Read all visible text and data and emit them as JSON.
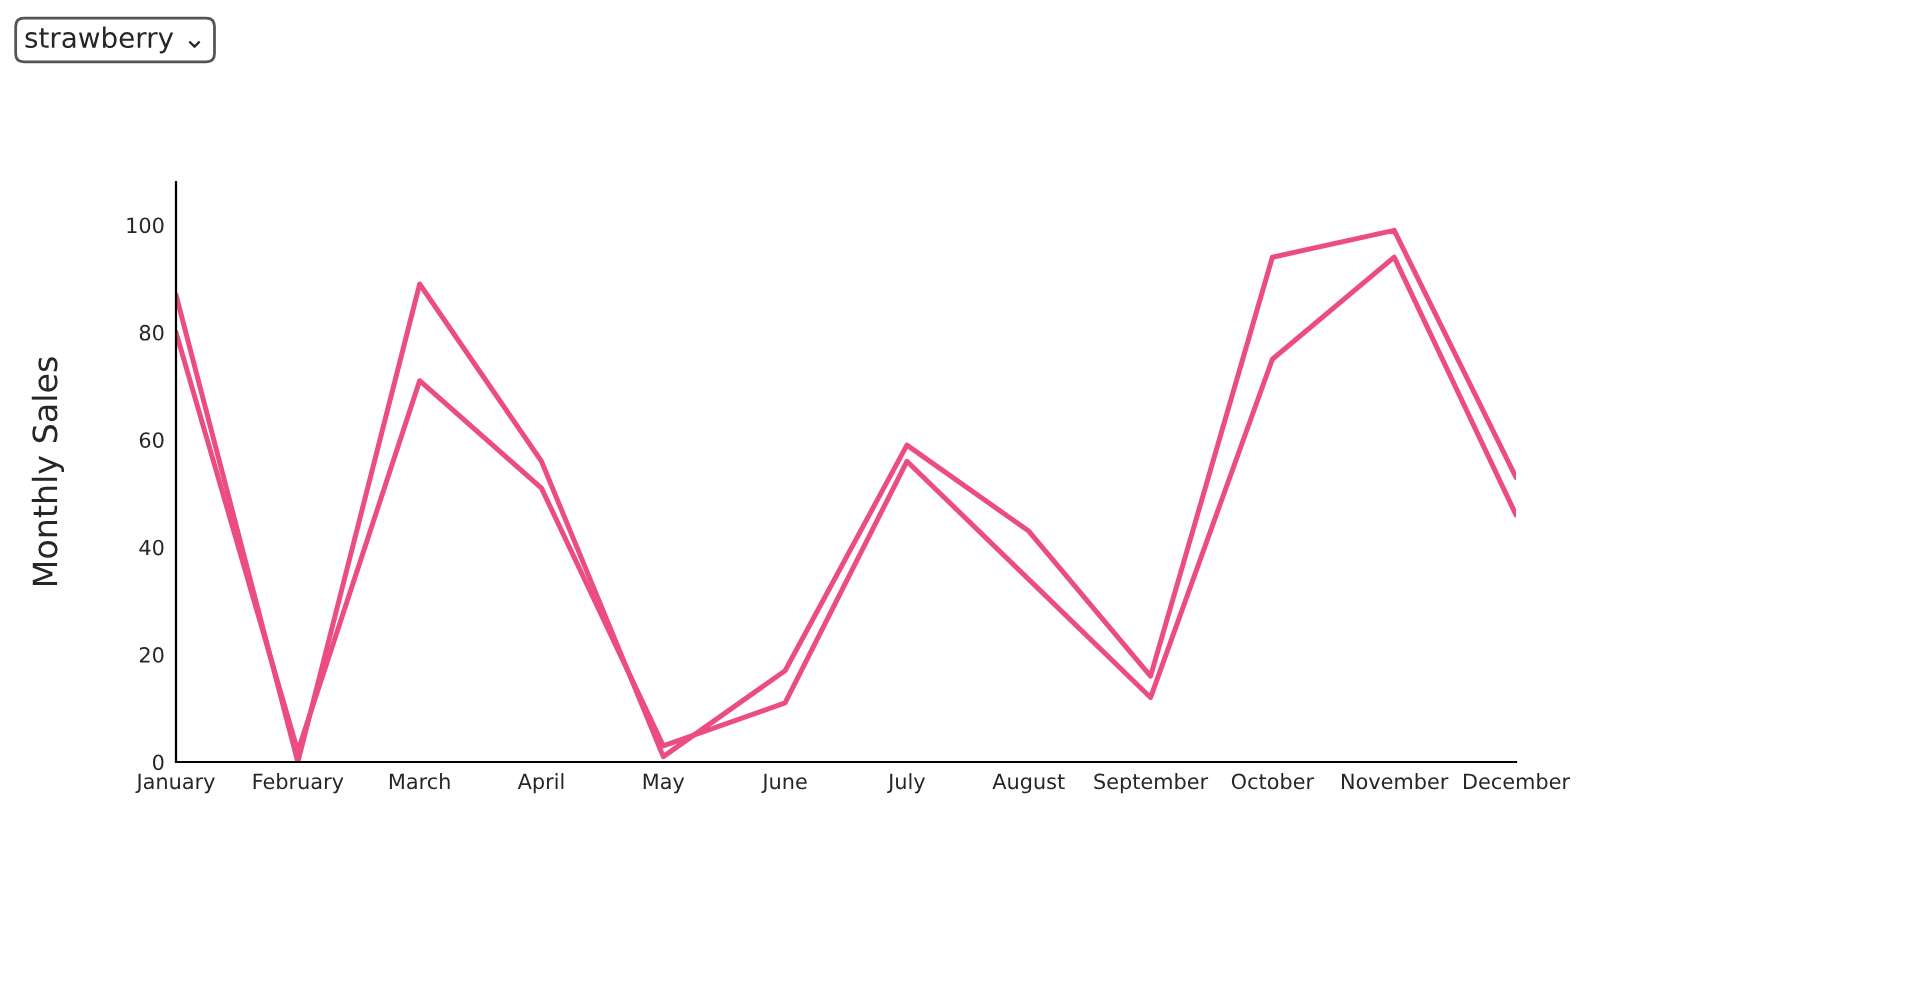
{
  "chart_data": {
    "type": "line",
    "ylabel": "Monthly Sales",
    "categories": [
      "January",
      "February",
      "March",
      "April",
      "May",
      "June",
      "July",
      "August",
      "September",
      "October",
      "November",
      "December"
    ],
    "series": [
      {
        "color": "#ec4c84",
        "values": [
          87,
          0,
          89,
          56,
          1,
          17,
          59,
          43,
          16,
          94,
          99,
          53
        ]
      },
      {
        "color": "#ec4c84",
        "values": [
          80,
          2,
          71,
          51,
          3,
          11,
          56,
          34,
          12,
          75,
          94,
          46
        ]
      }
    ],
    "ylim": [
      0,
      108
    ],
    "yticks": [
      0,
      20,
      40,
      60,
      80,
      100
    ],
    "grid": false,
    "legend": false,
    "marker": "none",
    "line_style": "solid",
    "annotations": [
      "strawberry ⌄"
    ]
  }
}
